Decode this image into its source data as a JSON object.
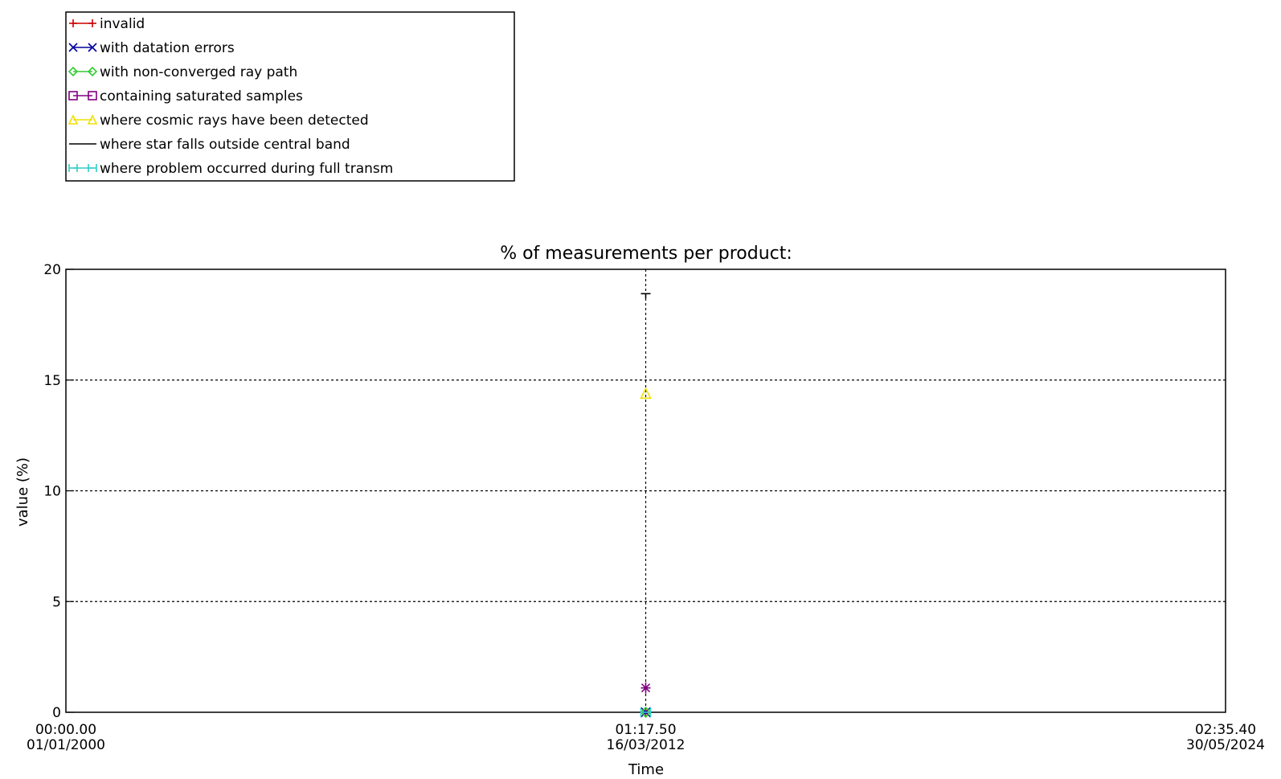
{
  "chart_data": {
    "type": "scatter",
    "title": "% of measurements per product:",
    "xlabel": "Time",
    "ylabel": "value (%)",
    "ylim": [
      0,
      20
    ],
    "yticks": [
      "0",
      "5",
      "10",
      "15",
      "20"
    ],
    "grid": true,
    "legend_position": "top-left",
    "xticks": [
      {
        "time": "00:00.00",
        "date": "01/01/2000"
      },
      {
        "time": "01:17.50",
        "date": "16/03/2012"
      },
      {
        "time": "02:35.40",
        "date": "30/05/2024"
      }
    ],
    "series": [
      {
        "name": "invalid",
        "color": "#cc0000",
        "marker": "plus",
        "points": [
          {
            "x": "16/03/2012 01:17.50",
            "y": 0
          }
        ]
      },
      {
        "name": "with datation errors",
        "color": "#000099",
        "marker": "x",
        "points": [
          {
            "x": "16/03/2012 01:17.50",
            "y": 0
          }
        ]
      },
      {
        "name": "with non-converged ray path",
        "color": "#33cc33",
        "marker": "diamond",
        "points": [
          {
            "x": "16/03/2012 01:17.50",
            "y": 0
          }
        ]
      },
      {
        "name": "containing saturated samples",
        "color": "#800080",
        "marker": "square",
        "points": [
          {
            "x": "16/03/2012 01:17.50",
            "y": 1.1
          }
        ]
      },
      {
        "name": "where cosmic rays have been detected",
        "color": "#f0e000",
        "marker": "triangle",
        "points": [
          {
            "x": "16/03/2012 01:17.50",
            "y": 14.4
          }
        ]
      },
      {
        "name": "where star falls outside central band",
        "color": "#000000",
        "marker": "none",
        "points": [
          {
            "x": "16/03/2012 01:17.50",
            "y": 18.9
          }
        ]
      },
      {
        "name": "where problem occurred during full transm",
        "color": "#33cccc",
        "marker": "bar",
        "points": [
          {
            "x": "16/03/2012 01:17.50",
            "y": 0
          }
        ]
      }
    ]
  }
}
